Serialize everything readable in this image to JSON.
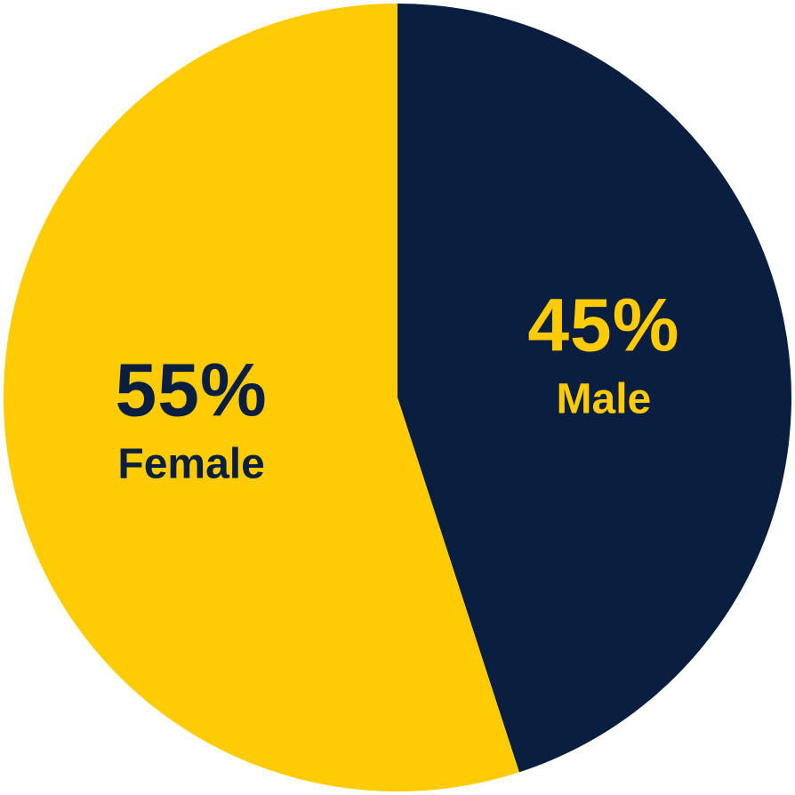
{
  "chart_data": {
    "type": "pie",
    "title": "",
    "slices": [
      {
        "label": "Male",
        "value": 45,
        "value_text": "45%",
        "color": "#0A1E3F",
        "text_color": "#FFCB05"
      },
      {
        "label": "Female",
        "value": 55,
        "value_text": "55%",
        "color": "#FFCB05",
        "text_color": "#0A1E3F"
      }
    ],
    "start_angle_deg": 0,
    "direction": "clockwise",
    "legend": "none",
    "labels": "inside"
  }
}
